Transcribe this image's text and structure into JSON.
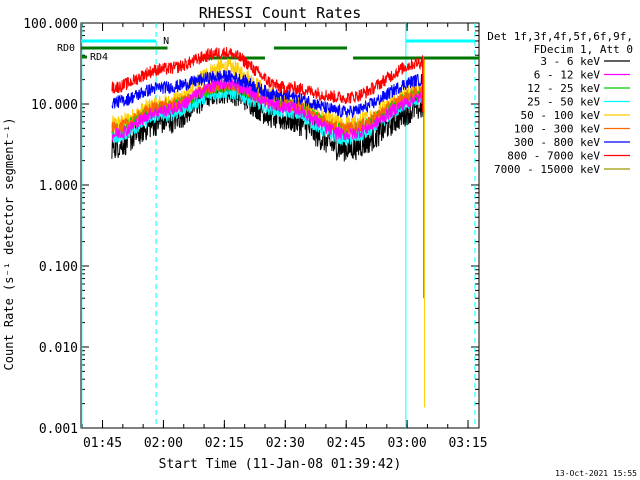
{
  "chart_data": {
    "type": "line",
    "title": "RHESSI Count Rates",
    "xlabel": "Start Time (11-Jan-08 01:39:42)",
    "ylabel": "Count Rate (s⁻¹ detector segment⁻¹)",
    "y_scale": "log",
    "ylim": [
      0.001,
      100
    ],
    "y_ticks": [
      "100.000",
      "10.000",
      "1.000",
      "0.100",
      "0.010",
      "0.001"
    ],
    "x_unit": "minutes since 01:39:42",
    "xlim": [
      0,
      98
    ],
    "x_ticks": [
      {
        "label": "01:45",
        "t": 5.3
      },
      {
        "label": "02:00",
        "t": 20.3
      },
      {
        "label": "02:15",
        "t": 35.3
      },
      {
        "label": "02:30",
        "t": 50.3
      },
      {
        "label": "02:45",
        "t": 65.3
      },
      {
        "label": "03:00",
        "t": 80.3
      },
      {
        "label": "03:15",
        "t": 95.3
      }
    ],
    "legend_header": [
      "Det 1f,3f,4f,5f,6f,9f,",
      "FDecim 1, Att 0"
    ],
    "legend_position": "right",
    "data_start": 7.6,
    "drop_time": 84.6,
    "series": [
      {
        "name": "3 - 6 keV",
        "color": "#000000",
        "values": [
          3.0,
          6.0,
          14.5,
          6.5,
          2.8,
          9.0
        ]
      },
      {
        "name": "6 - 12 keV",
        "color": "#ff00ff",
        "values": [
          4.2,
          8.3,
          18.0,
          9.2,
          4.2,
          12.0
        ]
      },
      {
        "name": "12 - 25 keV",
        "color": "#00cc00",
        "values": [
          4.7,
          9.0,
          16.5,
          10.0,
          4.8,
          13.5
        ]
      },
      {
        "name": "25 - 50 keV",
        "color": "#00ffff",
        "values": [
          3.9,
          7.2,
          13.8,
          8.0,
          3.7,
          11.5
        ]
      },
      {
        "name": "50 - 100 keV",
        "color": "#ffcc00",
        "values": [
          5.5,
          10.0,
          28.0,
          11.0,
          5.5,
          15.0
        ]
      },
      {
        "name": "100 - 300 keV",
        "color": "#ff6600",
        "values": [
          5.0,
          9.5,
          17.0,
          10.0,
          5.0,
          14.0
        ]
      },
      {
        "name": "300 - 800 keV",
        "color": "#0000ff",
        "values": [
          10.5,
          16.0,
          22.0,
          12.5,
          8.0,
          20.0
        ]
      },
      {
        "name": "800 - 7000 keV",
        "color": "#ff0000",
        "values": [
          16.0,
          27.0,
          43.0,
          16.0,
          12.0,
          33.0
        ]
      },
      {
        "name": "7000 - 15000 keV",
        "color": "#999900",
        "values": [
          null,
          null,
          null,
          null,
          null,
          0.002
        ]
      }
    ],
    "curve_times": [
      7.6,
      20.3,
      35.3,
      50.3,
      65.3,
      84.5
    ],
    "attenuator_states": [
      {
        "label": "RD0",
        "color": "#007700",
        "segments": [
          [
            0,
            21.3
          ],
          [
            28.8,
            45.3
          ],
          [
            47.5,
            65.5
          ],
          [
            67.0,
            98.0
          ]
        ]
      },
      {
        "label": "RD4",
        "color": "#007700",
        "segments": []
      }
    ],
    "night_marker": {
      "label": "N",
      "color": "#00ffff",
      "segments": [
        [
          0,
          18.5
        ],
        [
          80.0,
          97.0
        ]
      ]
    },
    "cyan_vertical_lines_t": [
      0.2,
      18.5,
      80.0,
      97.0
    ],
    "footer_date": "13-Oct-2021 15:55"
  }
}
